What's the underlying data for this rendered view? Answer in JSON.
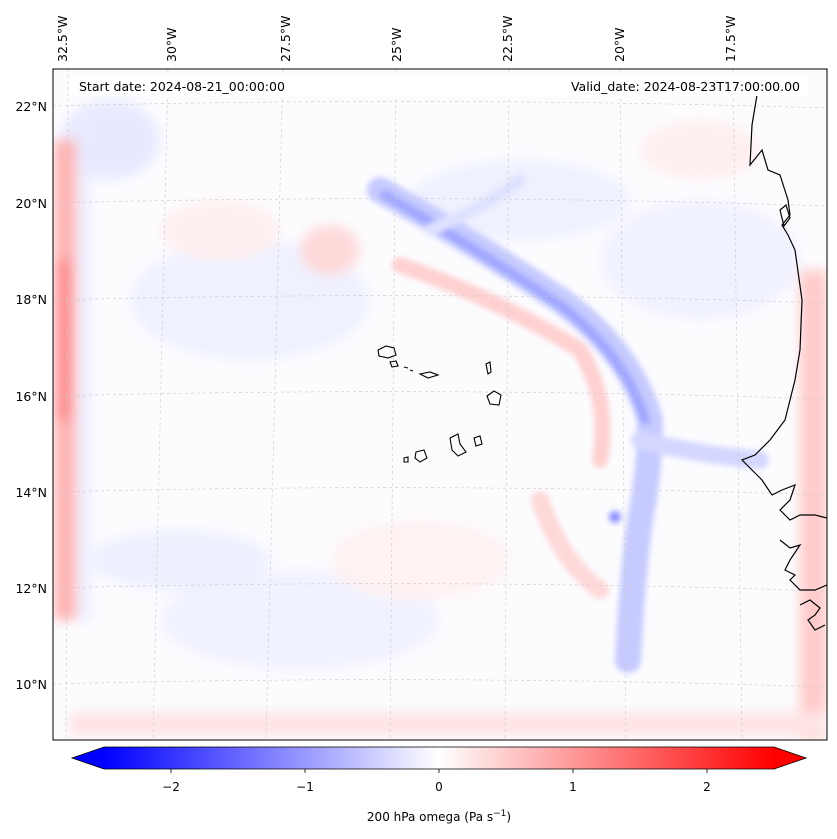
{
  "map": {
    "region": "Eastern tropical Atlantic off West Africa (Cape Verde)",
    "start_date_label": "Start date: 2024-08-21_00:00:00",
    "valid_date_label": "Valid_date: 2024-08-23T17:00:00.00",
    "lon_ticks": [
      "32.5°W",
      "30°W",
      "27.5°W",
      "25°W",
      "22.5°W",
      "20°W",
      "17.5°W"
    ],
    "lat_ticks": [
      "22°N",
      "20°N",
      "18°N",
      "16°N",
      "14°N",
      "12°N",
      "10°N"
    ],
    "gridlines": true,
    "coastline_color": "#000000",
    "features": [
      "Cape Verde islands",
      "West African coastline"
    ]
  },
  "colorbar": {
    "colormap": "bwr",
    "min": -2.5,
    "max": 2.5,
    "extend": "both",
    "tick_values": [
      -2,
      -1,
      0,
      1,
      2
    ],
    "tick_labels": [
      "−2",
      "−1",
      "0",
      "1",
      "2"
    ],
    "label": "200 hPa omega (Pa s",
    "label_exp": "−1",
    "label_close": ")",
    "colors": {
      "negative": "#0000ff",
      "zero": "#ffffff",
      "positive": "#ff0000"
    }
  }
}
